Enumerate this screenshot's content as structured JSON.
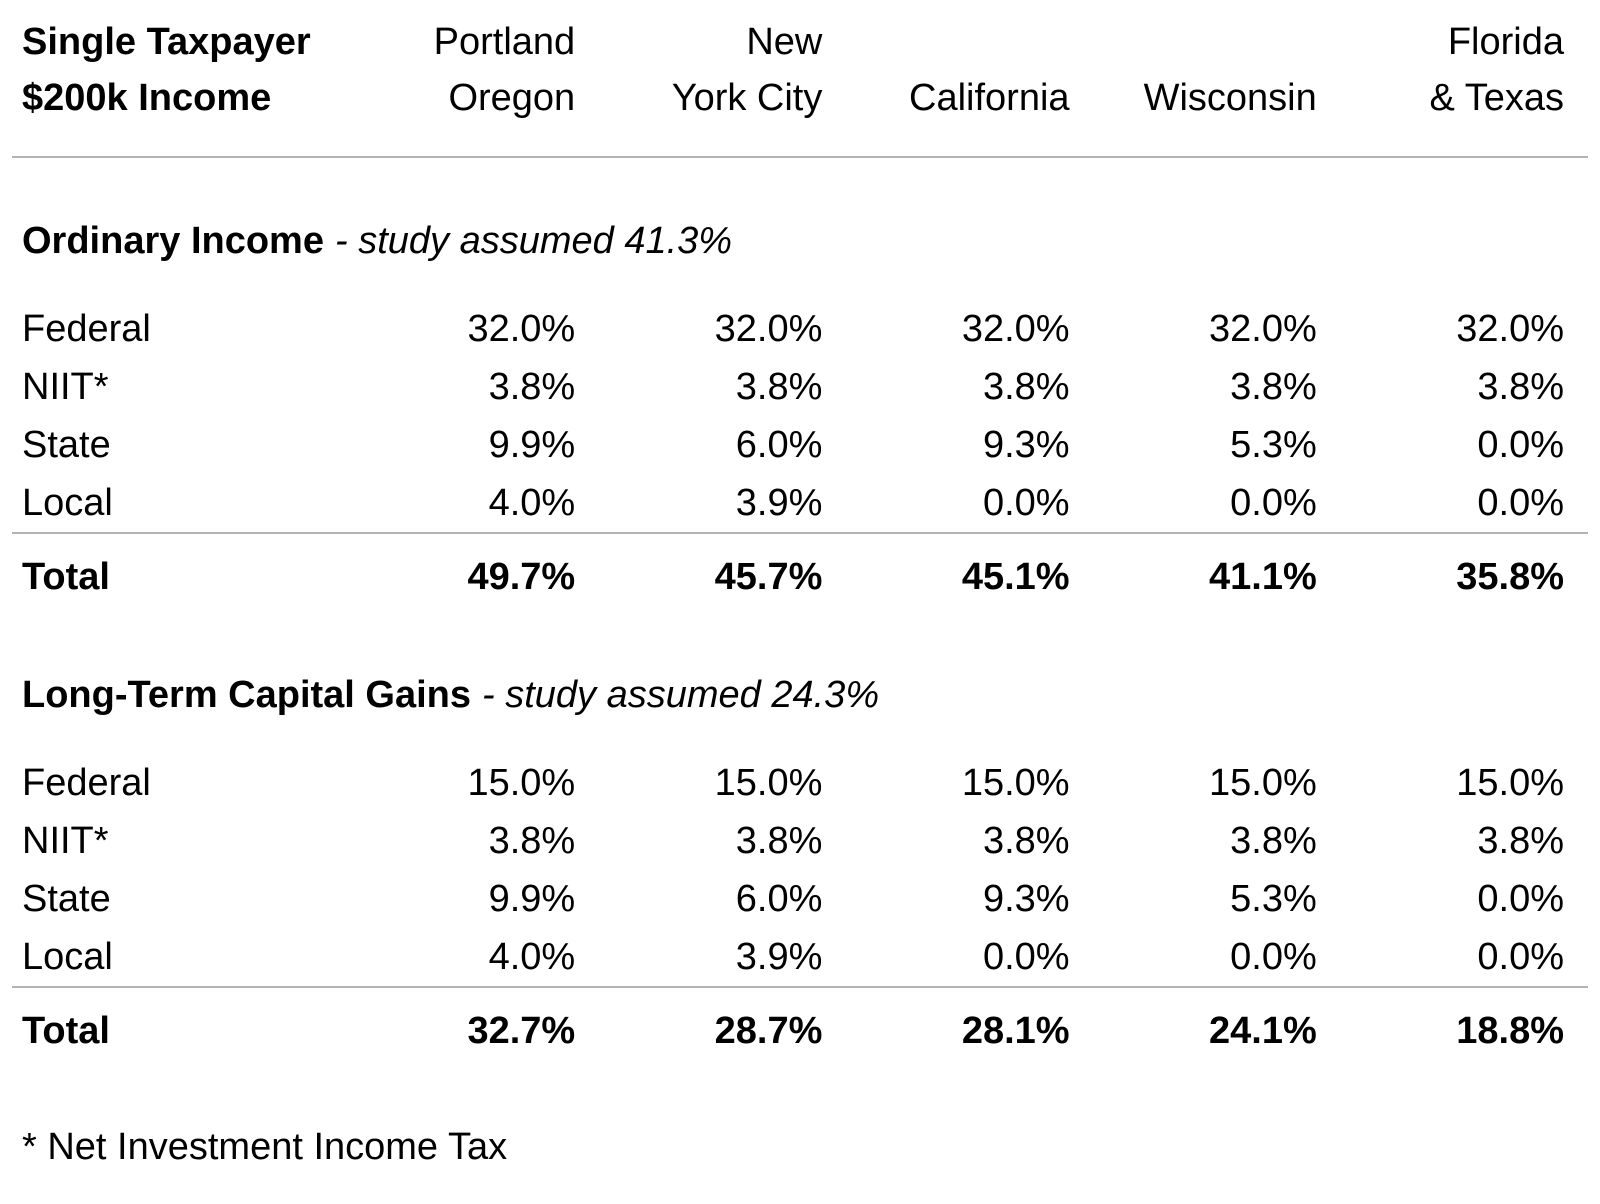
{
  "chart_data": {
    "type": "table",
    "corner_header": {
      "lines": [
        "Single Taxpayer",
        "$200k Income"
      ]
    },
    "columns": [
      {
        "lines": [
          "Portland",
          "Oregon"
        ]
      },
      {
        "lines": [
          "New",
          "York City"
        ]
      },
      {
        "lines": [
          "California"
        ]
      },
      {
        "lines": [
          "Wisconsin"
        ]
      },
      {
        "lines": [
          "Florida",
          "& Texas"
        ]
      }
    ],
    "sections": [
      {
        "title": "Ordinary Income",
        "subtitle": "- study assumed 41.3%",
        "rows": [
          {
            "label": "Federal",
            "values": [
              "32.0%",
              "32.0%",
              "32.0%",
              "32.0%",
              "32.0%"
            ]
          },
          {
            "label": "NIIT*",
            "values": [
              "3.8%",
              "3.8%",
              "3.8%",
              "3.8%",
              "3.8%"
            ]
          },
          {
            "label": "State",
            "values": [
              "9.9%",
              "6.0%",
              "9.3%",
              "5.3%",
              "0.0%"
            ]
          },
          {
            "label": "Local",
            "values": [
              "4.0%",
              "3.9%",
              "0.0%",
              "0.0%",
              "0.0%"
            ]
          }
        ],
        "total": {
          "label": "Total",
          "values": [
            "49.7%",
            "45.7%",
            "45.1%",
            "41.1%",
            "35.8%"
          ]
        }
      },
      {
        "title": "Long-Term Capital Gains",
        "subtitle": "- study assumed 24.3%",
        "rows": [
          {
            "label": "Federal",
            "values": [
              "15.0%",
              "15.0%",
              "15.0%",
              "15.0%",
              "15.0%"
            ]
          },
          {
            "label": "NIIT*",
            "values": [
              "3.8%",
              "3.8%",
              "3.8%",
              "3.8%",
              "3.8%"
            ]
          },
          {
            "label": "State",
            "values": [
              "9.9%",
              "6.0%",
              "9.3%",
              "5.3%",
              "0.0%"
            ]
          },
          {
            "label": "Local",
            "values": [
              "4.0%",
              "3.9%",
              "0.0%",
              "0.0%",
              "0.0%"
            ]
          }
        ],
        "total": {
          "label": "Total",
          "values": [
            "32.7%",
            "28.7%",
            "28.1%",
            "24.1%",
            "18.8%"
          ]
        }
      }
    ],
    "footnote": "* Net Investment Income Tax",
    "colors": {
      "text": "#000000",
      "divider": "#b3b3b3",
      "background": "#ffffff"
    }
  }
}
